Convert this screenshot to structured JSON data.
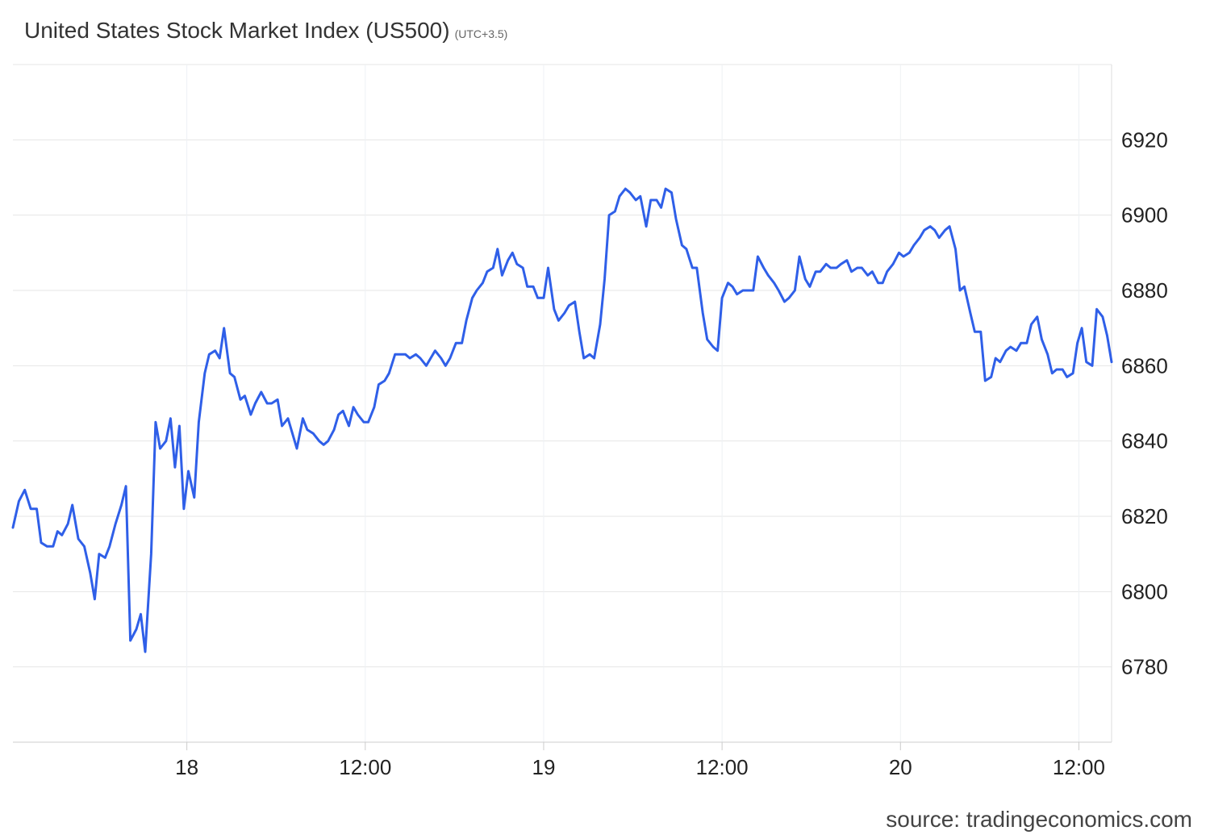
{
  "header": {
    "title": "United States Stock Market Index (US500)",
    "subtitle": "(UTC+3.5)"
  },
  "footer": {
    "source": "source: tradingeconomics.com"
  },
  "chart_data": {
    "type": "line",
    "title": "United States Stock Market Index (US500)",
    "subtitle": "(UTC+3.5)",
    "xlabel": "",
    "ylabel": "",
    "x_ticks": [
      {
        "label": "18",
        "hour": 17.3
      },
      {
        "label": "12:00",
        "hour": 29.3
      },
      {
        "label": "19",
        "hour": 41.3
      },
      {
        "label": "12:00",
        "hour": 53.3
      },
      {
        "label": "20",
        "hour": 65.3
      },
      {
        "label": "12:00",
        "hour": 77.3
      }
    ],
    "xlim": [
      5.6,
      79.5
    ],
    "y_ticks": [
      6780,
      6800,
      6820,
      6840,
      6860,
      6880,
      6900,
      6920
    ],
    "ylim": [
      6760,
      6940
    ],
    "grid": true,
    "line_color": "#2f5fe8",
    "series": [
      {
        "values": [
          [
            5.6,
            6817
          ],
          [
            6.0,
            6824
          ],
          [
            6.4,
            6827
          ],
          [
            6.8,
            6822
          ],
          [
            7.2,
            6822
          ],
          [
            7.5,
            6813
          ],
          [
            7.9,
            6812
          ],
          [
            8.3,
            6812
          ],
          [
            8.6,
            6816
          ],
          [
            8.9,
            6815
          ],
          [
            9.3,
            6818
          ],
          [
            9.6,
            6823
          ],
          [
            10.0,
            6814
          ],
          [
            10.4,
            6812
          ],
          [
            10.8,
            6805
          ],
          [
            11.1,
            6798
          ],
          [
            11.4,
            6810
          ],
          [
            11.8,
            6809
          ],
          [
            12.1,
            6812
          ],
          [
            12.5,
            6818
          ],
          [
            12.9,
            6823
          ],
          [
            13.2,
            6828
          ],
          [
            13.5,
            6787
          ],
          [
            13.9,
            6790
          ],
          [
            14.2,
            6794
          ],
          [
            14.5,
            6784
          ],
          [
            14.9,
            6810
          ],
          [
            15.2,
            6845
          ],
          [
            15.5,
            6838
          ],
          [
            15.9,
            6840
          ],
          [
            16.2,
            6846
          ],
          [
            16.5,
            6833
          ],
          [
            16.8,
            6844
          ],
          [
            17.1,
            6822
          ],
          [
            17.4,
            6832
          ],
          [
            17.8,
            6825
          ],
          [
            18.1,
            6845
          ],
          [
            18.5,
            6858
          ],
          [
            18.8,
            6863
          ],
          [
            19.2,
            6864
          ],
          [
            19.5,
            6862
          ],
          [
            19.8,
            6870
          ],
          [
            20.2,
            6858
          ],
          [
            20.5,
            6857
          ],
          [
            20.9,
            6851
          ],
          [
            21.2,
            6852
          ],
          [
            21.6,
            6847
          ],
          [
            21.9,
            6850
          ],
          [
            22.3,
            6853
          ],
          [
            22.7,
            6850
          ],
          [
            23.0,
            6850
          ],
          [
            23.4,
            6851
          ],
          [
            23.7,
            6844
          ],
          [
            24.1,
            6846
          ],
          [
            24.4,
            6842
          ],
          [
            24.7,
            6838
          ],
          [
            25.1,
            6846
          ],
          [
            25.4,
            6843
          ],
          [
            25.8,
            6842
          ],
          [
            26.2,
            6840
          ],
          [
            26.5,
            6839
          ],
          [
            26.8,
            6840
          ],
          [
            27.2,
            6843
          ],
          [
            27.5,
            6847
          ],
          [
            27.8,
            6848
          ],
          [
            28.2,
            6844
          ],
          [
            28.5,
            6849
          ],
          [
            28.8,
            6847
          ],
          [
            29.2,
            6845
          ],
          [
            29.5,
            6845
          ],
          [
            29.9,
            6849
          ],
          [
            30.2,
            6855
          ],
          [
            30.6,
            6856
          ],
          [
            30.9,
            6858
          ],
          [
            31.3,
            6863
          ],
          [
            31.6,
            6863
          ],
          [
            32.0,
            6863
          ],
          [
            32.3,
            6862
          ],
          [
            32.7,
            6863
          ],
          [
            33.0,
            6862
          ],
          [
            33.4,
            6860
          ],
          [
            33.7,
            6862
          ],
          [
            34.0,
            6864
          ],
          [
            34.4,
            6862
          ],
          [
            34.7,
            6860
          ],
          [
            35.0,
            6862
          ],
          [
            35.4,
            6866
          ],
          [
            35.8,
            6866
          ],
          [
            36.1,
            6872
          ],
          [
            36.5,
            6878
          ],
          [
            36.8,
            6880
          ],
          [
            37.2,
            6882
          ],
          [
            37.5,
            6885
          ],
          [
            37.9,
            6886
          ],
          [
            38.2,
            6891
          ],
          [
            38.5,
            6884
          ],
          [
            38.9,
            6888
          ],
          [
            39.2,
            6890
          ],
          [
            39.5,
            6887
          ],
          [
            39.9,
            6886
          ],
          [
            40.2,
            6881
          ],
          [
            40.6,
            6881
          ],
          [
            40.9,
            6878
          ],
          [
            41.3,
            6878
          ],
          [
            41.6,
            6886
          ],
          [
            42.0,
            6875
          ],
          [
            42.3,
            6872
          ],
          [
            42.7,
            6874
          ],
          [
            43.0,
            6876
          ],
          [
            43.4,
            6877
          ],
          [
            43.7,
            6869
          ],
          [
            44.0,
            6862
          ],
          [
            44.4,
            6863
          ],
          [
            44.7,
            6862
          ],
          [
            45.1,
            6871
          ],
          [
            45.4,
            6883
          ],
          [
            45.7,
            6900
          ],
          [
            46.1,
            6901
          ],
          [
            46.4,
            6905
          ],
          [
            46.8,
            6907
          ],
          [
            47.1,
            6906
          ],
          [
            47.5,
            6904
          ],
          [
            47.8,
            6905
          ],
          [
            48.2,
            6897
          ],
          [
            48.5,
            6904
          ],
          [
            48.9,
            6904
          ],
          [
            49.2,
            6902
          ],
          [
            49.5,
            6907
          ],
          [
            49.9,
            6906
          ],
          [
            50.2,
            6899
          ],
          [
            50.6,
            6892
          ],
          [
            50.9,
            6891
          ],
          [
            51.3,
            6886
          ],
          [
            51.6,
            6886
          ],
          [
            52.0,
            6874
          ],
          [
            52.3,
            6867
          ],
          [
            52.7,
            6865
          ],
          [
            53.0,
            6864
          ],
          [
            53.3,
            6878
          ],
          [
            53.7,
            6882
          ],
          [
            54.0,
            6881
          ],
          [
            54.3,
            6879
          ],
          [
            54.7,
            6880
          ],
          [
            55.0,
            6880
          ],
          [
            55.4,
            6880
          ],
          [
            55.7,
            6889
          ],
          [
            56.1,
            6886
          ],
          [
            56.4,
            6884
          ],
          [
            56.8,
            6882
          ],
          [
            57.1,
            6880
          ],
          [
            57.5,
            6877
          ],
          [
            57.8,
            6878
          ],
          [
            58.2,
            6880
          ],
          [
            58.5,
            6889
          ],
          [
            58.9,
            6883
          ],
          [
            59.2,
            6881
          ],
          [
            59.6,
            6885
          ],
          [
            59.9,
            6885
          ],
          [
            60.3,
            6887
          ],
          [
            60.6,
            6886
          ],
          [
            61.0,
            6886
          ],
          [
            61.3,
            6887
          ],
          [
            61.7,
            6888
          ],
          [
            62.0,
            6885
          ],
          [
            62.4,
            6886
          ],
          [
            62.7,
            6886
          ],
          [
            63.1,
            6884
          ],
          [
            63.4,
            6885
          ],
          [
            63.8,
            6882
          ],
          [
            64.1,
            6882
          ],
          [
            64.4,
            6885
          ],
          [
            64.8,
            6887
          ],
          [
            65.2,
            6890
          ],
          [
            65.5,
            6889
          ],
          [
            65.9,
            6890
          ],
          [
            66.2,
            6892
          ],
          [
            66.6,
            6894
          ],
          [
            66.9,
            6896
          ],
          [
            67.3,
            6897
          ],
          [
            67.6,
            6896
          ],
          [
            67.9,
            6894
          ],
          [
            68.3,
            6896
          ],
          [
            68.6,
            6897
          ],
          [
            69.0,
            6891
          ],
          [
            69.3,
            6880
          ],
          [
            69.6,
            6881
          ],
          [
            70.0,
            6874
          ],
          [
            70.3,
            6869
          ],
          [
            70.7,
            6869
          ],
          [
            71.0,
            6856
          ],
          [
            71.4,
            6857
          ],
          [
            71.7,
            6862
          ],
          [
            72.0,
            6861
          ],
          [
            72.4,
            6864
          ],
          [
            72.7,
            6865
          ],
          [
            73.1,
            6864
          ],
          [
            73.4,
            6866
          ],
          [
            73.8,
            6866
          ],
          [
            74.1,
            6871
          ],
          [
            74.5,
            6873
          ],
          [
            74.8,
            6867
          ],
          [
            75.2,
            6863
          ],
          [
            75.5,
            6858
          ],
          [
            75.8,
            6859
          ],
          [
            76.2,
            6859
          ],
          [
            76.5,
            6857
          ],
          [
            76.9,
            6858
          ],
          [
            77.2,
            6866
          ],
          [
            77.5,
            6870
          ],
          [
            77.8,
            6861
          ],
          [
            78.2,
            6860
          ],
          [
            78.5,
            6875
          ],
          [
            78.9,
            6873
          ],
          [
            79.2,
            6868
          ],
          [
            79.5,
            6861
          ]
        ]
      }
    ]
  }
}
